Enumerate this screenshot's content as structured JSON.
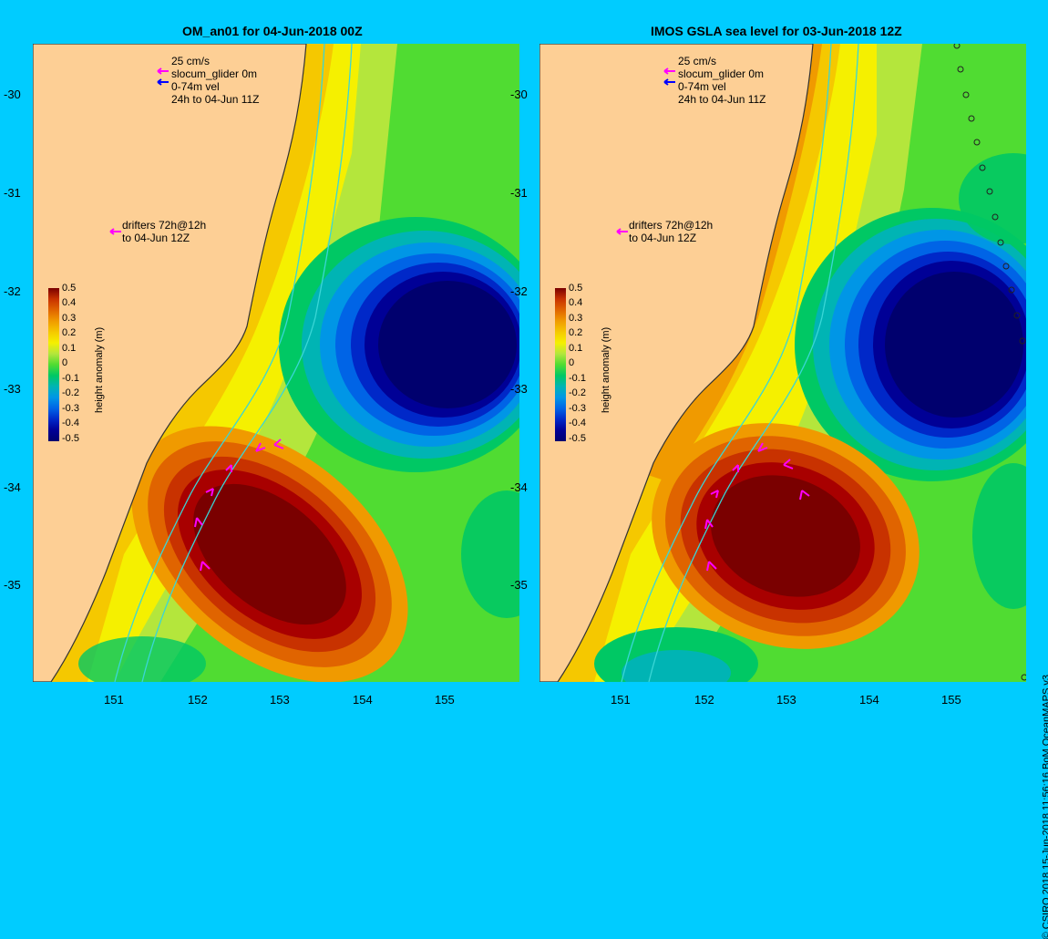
{
  "colors": {
    "background": "#00ccff",
    "land": "#fdcf95",
    "scale": [
      "#7a0000",
      "#a80000",
      "#c83200",
      "#e06400",
      "#f09a00",
      "#f5c800",
      "#f5f000",
      "#b4e63c",
      "#50dc32",
      "#00c864",
      "#00b4b4",
      "#0096e6",
      "#0064e6",
      "#0028c8",
      "#000096",
      "#00006e"
    ]
  },
  "credit": "© CSIRO 2018   15-Jun-2018 11:56:16 BoM OceanMAPS v3",
  "panels": [
    {
      "title": "OM_an01 for 04-Jun-2018 00Z",
      "legend_top": [
        "25 cm/s",
        "slocum_glider 0m",
        "0-74m vel",
        "24h to 04-Jun 11Z"
      ],
      "legend_drifters": [
        "drifters 72h@12h",
        "to 04-Jun 12Z"
      ]
    },
    {
      "title": "IMOS GSLA sea level  for 03-Jun-2018 12Z",
      "legend_top": [
        "25 cm/s",
        "slocum_glider 0m",
        "0-74m vel",
        "24h to 04-Jun 11Z"
      ],
      "legend_drifters": [
        "drifters 72h@12h",
        "to 04-Jun 12Z"
      ]
    }
  ],
  "axes": {
    "x_ticks": [
      "151",
      "152",
      "153",
      "154",
      "155"
    ],
    "y_ticks": [
      "-30",
      "-31",
      "-32",
      "-33",
      "-34",
      "-35"
    ]
  },
  "colorbar": {
    "title": "height anomaly (m)",
    "labels": [
      "0.5",
      "0.4",
      "0.3",
      "0.2",
      "0.1",
      "0",
      "-0.1",
      "-0.2",
      "-0.3",
      "-0.4",
      "-0.5"
    ]
  },
  "icons": [
    "magenta-arrow-icon",
    "blue-arrow-icon"
  ]
}
